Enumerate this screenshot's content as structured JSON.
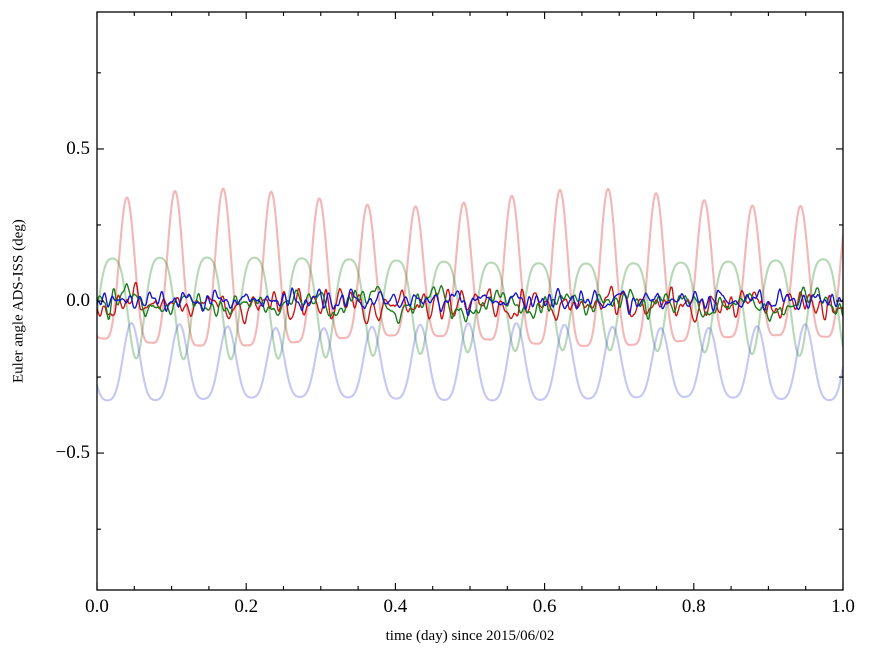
{
  "figure": {
    "background": "#ffffff",
    "frame_color": "#000000"
  },
  "chart_data": {
    "type": "line",
    "title": "",
    "xlabel": "time (day) since 2015/06/02",
    "ylabel": "Euler angle ADS-ISS (deg)",
    "xlim": [
      0.0,
      1.0
    ],
    "ylim": [
      -0.95,
      0.95
    ],
    "grid": false,
    "legend": "none",
    "tick_style": "inward ticks on all four sides, minor ticks between majors",
    "xticks": {
      "major": [
        0.0,
        0.2,
        0.4,
        0.6,
        0.8,
        1.0
      ],
      "labels": [
        "0.0",
        "0.2",
        "0.4",
        "0.6",
        "0.8",
        "1.0"
      ],
      "minor_step": 0.05
    },
    "yticks": {
      "major": [
        -0.5,
        0.0,
        0.5
      ],
      "labels": [
        "−0.5",
        "0.0",
        "0.5"
      ],
      "minor_step": 0.25
    },
    "series": [
      {
        "name": "pale-red-oscillation",
        "style": "smooth",
        "description": "smooth periodic oscillation, ~15.5 cycles/day, sharp peaks ~+0.34, troughs ~-0.13",
        "y_range": [
          -0.13,
          0.34
        ],
        "color": "#dd2222",
        "alpha": 0.33,
        "lw": 2.1,
        "period": 0.0645,
        "offset": 0.045,
        "harmonics": [
          [
            1,
            0.235,
            -2.33
          ],
          [
            2,
            0.06,
            0.05
          ]
        ],
        "amp_mod": [
          2,
          0.1,
          -0.5
        ]
      },
      {
        "name": "pale-green-oscillation",
        "style": "smooth",
        "description": "smooth periodic oscillation, ~15.7 cycles/day, peaks ~+0.18, troughs ~-0.16",
        "y_range": [
          -0.16,
          0.18
        ],
        "color": "#228822",
        "alpha": 0.33,
        "lw": 2.1,
        "period": 0.0635,
        "offset": 0.01,
        "harmonics": [
          [
            1,
            0.155,
            -0.48
          ],
          [
            2,
            0.032,
            0.6
          ]
        ],
        "amp_mod": [
          1,
          0.08,
          0.6
        ]
      },
      {
        "name": "pale-blue-oscillation",
        "style": "smooth",
        "description": "smooth periodic oscillation, ~15.5 cycles/day, between ~-0.09 and ~-0.33",
        "y_range": [
          -0.33,
          -0.09
        ],
        "color": "#4444dd",
        "alpha": 0.3,
        "lw": 2.1,
        "period": 0.0645,
        "offset": -0.225,
        "harmonics": [
          [
            1,
            0.12,
            3.36
          ],
          [
            2,
            0.024,
            5.15
          ]
        ],
        "amp_mod": [
          2,
          0.06,
          1.2
        ]
      },
      {
        "name": "red-residual",
        "style": "noise",
        "description": "noisy residual near zero, excursions roughly -0.07..+0.06",
        "y_range": [
          -0.07,
          0.06
        ],
        "color": "#cc1111",
        "alpha": 1,
        "lw": 1.35,
        "seed": 11,
        "base": 0.022,
        "jitter": 0.006,
        "mean": -0.012
      },
      {
        "name": "green-residual",
        "style": "noise",
        "description": "noisy residual near zero, roughly -0.05..+0.04",
        "y_range": [
          -0.05,
          0.04
        ],
        "color": "#1a7a1a",
        "alpha": 1,
        "lw": 1.35,
        "seed": 23,
        "base": 0.017,
        "jitter": 0.005,
        "mean": -0.008
      },
      {
        "name": "blue-residual",
        "style": "noise",
        "description": "noisy residual near zero, roughly -0.04..+0.05",
        "y_range": [
          -0.04,
          0.05
        ],
        "color": "#1515cc",
        "alpha": 1,
        "lw": 1.35,
        "seed": 37,
        "base": 0.016,
        "jitter": 0.005,
        "mean": 0.002
      }
    ]
  }
}
